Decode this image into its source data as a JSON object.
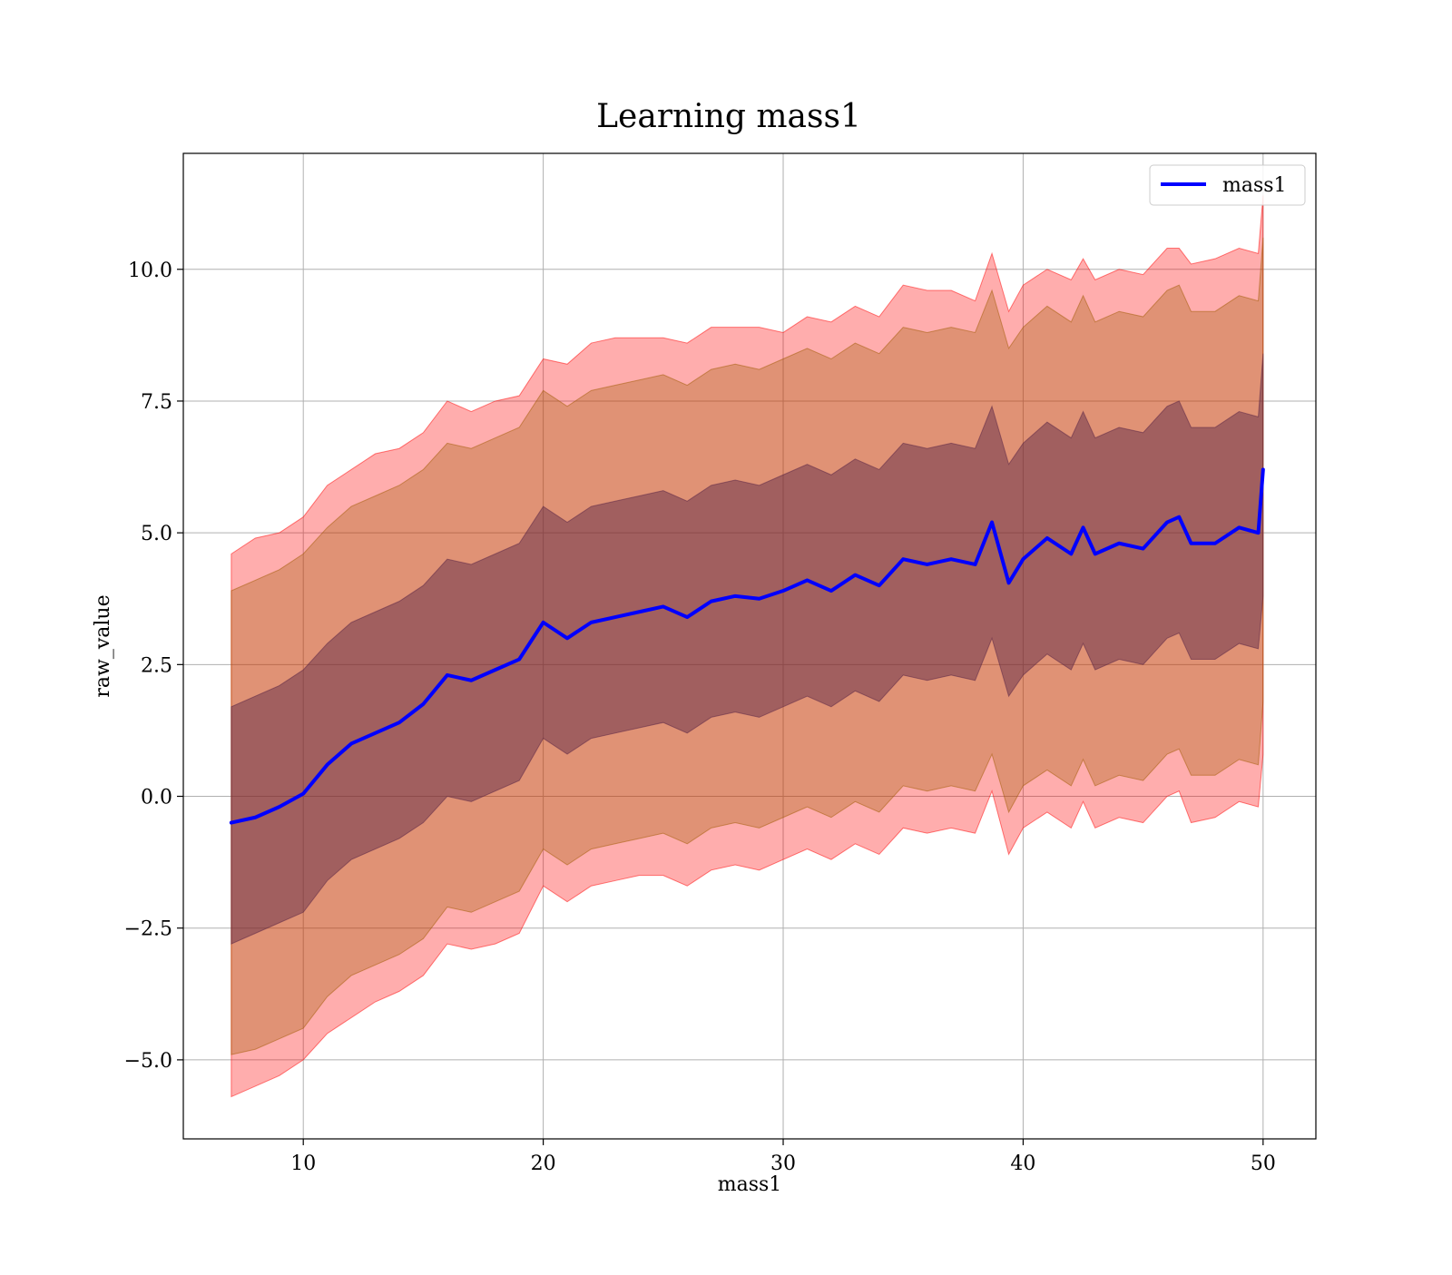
{
  "chart_data": {
    "type": "area",
    "title": "Learning mass1",
    "xlabel": "mass1",
    "ylabel": "raw_value",
    "xlim": [
      5.0,
      52.2
    ],
    "ylim": [
      -6.5,
      12.2
    ],
    "xticks": [
      10,
      20,
      30,
      40,
      50
    ],
    "xtick_labels": [
      "10",
      "20",
      "30",
      "40",
      "50"
    ],
    "yticks": [
      -5.0,
      -2.5,
      0.0,
      2.5,
      5.0,
      7.5,
      10.0
    ],
    "ytick_labels": [
      "−5.0",
      "−2.5",
      "0.0",
      "2.5",
      "5.0",
      "7.5",
      "10.0"
    ],
    "grid": true,
    "legend_position": "top-right",
    "colors": {
      "line": "#0000ff",
      "band_outer": "#ff0000",
      "band_middle": "#a05a00",
      "band_inner": "#552244"
    },
    "x": [
      7,
      8,
      9,
      10,
      11,
      12,
      13,
      14,
      15,
      16,
      17,
      18,
      19,
      20,
      21,
      22,
      23,
      24,
      25,
      26,
      27,
      28,
      29,
      30,
      31,
      32,
      33,
      34,
      35,
      36,
      37,
      38,
      38.7,
      39.4,
      40,
      41,
      42,
      42.5,
      43,
      44,
      45,
      46,
      46.5,
      47,
      48,
      49,
      49.8,
      50
    ],
    "series": [
      {
        "name": "mass1",
        "role": "mean",
        "values": [
          -0.5,
          -0.4,
          -0.2,
          0.05,
          0.6,
          1.0,
          1.2,
          1.4,
          1.75,
          2.3,
          2.2,
          2.4,
          2.6,
          3.3,
          3.0,
          3.3,
          3.4,
          3.5,
          3.6,
          3.4,
          3.7,
          3.8,
          3.75,
          3.9,
          4.1,
          3.9,
          4.2,
          4.0,
          4.5,
          4.4,
          4.5,
          4.4,
          5.2,
          4.05,
          4.5,
          4.9,
          4.6,
          5.1,
          4.6,
          4.8,
          4.7,
          5.2,
          5.3,
          4.8,
          4.8,
          5.1,
          5.0,
          6.2
        ]
      }
    ],
    "bands": [
      {
        "role": "outer",
        "upper": [
          4.6,
          4.9,
          5.0,
          5.3,
          5.9,
          6.2,
          6.5,
          6.6,
          6.9,
          7.5,
          7.3,
          7.5,
          7.6,
          8.3,
          8.2,
          8.6,
          8.7,
          8.7,
          8.7,
          8.6,
          8.9,
          8.9,
          8.9,
          8.8,
          9.1,
          9.0,
          9.3,
          9.1,
          9.7,
          9.6,
          9.6,
          9.4,
          10.3,
          9.2,
          9.7,
          10.0,
          9.8,
          10.2,
          9.8,
          10.0,
          9.9,
          10.4,
          10.4,
          10.1,
          10.2,
          10.4,
          10.3,
          11.4
        ],
        "lower": [
          -5.7,
          -5.5,
          -5.3,
          -5.0,
          -4.5,
          -4.2,
          -3.9,
          -3.7,
          -3.4,
          -2.8,
          -2.9,
          -2.8,
          -2.6,
          -1.7,
          -2.0,
          -1.7,
          -1.6,
          -1.5,
          -1.5,
          -1.7,
          -1.4,
          -1.3,
          -1.4,
          -1.2,
          -1.0,
          -1.2,
          -0.9,
          -1.1,
          -0.6,
          -0.7,
          -0.6,
          -0.7,
          0.1,
          -1.1,
          -0.6,
          -0.3,
          -0.6,
          -0.1,
          -0.6,
          -0.4,
          -0.5,
          0.0,
          0.1,
          -0.5,
          -0.4,
          -0.1,
          -0.2,
          0.8
        ]
      },
      {
        "role": "middle",
        "upper": [
          3.9,
          4.1,
          4.3,
          4.6,
          5.1,
          5.5,
          5.7,
          5.9,
          6.2,
          6.7,
          6.6,
          6.8,
          7.0,
          7.7,
          7.4,
          7.7,
          7.8,
          7.9,
          8.0,
          7.8,
          8.1,
          8.2,
          8.1,
          8.3,
          8.5,
          8.3,
          8.6,
          8.4,
          8.9,
          8.8,
          8.9,
          8.8,
          9.6,
          8.5,
          8.9,
          9.3,
          9.0,
          9.5,
          9.0,
          9.2,
          9.1,
          9.6,
          9.7,
          9.2,
          9.2,
          9.5,
          9.4,
          10.6
        ],
        "lower": [
          -4.9,
          -4.8,
          -4.6,
          -4.4,
          -3.8,
          -3.4,
          -3.2,
          -3.0,
          -2.7,
          -2.1,
          -2.2,
          -2.0,
          -1.8,
          -1.0,
          -1.3,
          -1.0,
          -0.9,
          -0.8,
          -0.7,
          -0.9,
          -0.6,
          -0.5,
          -0.6,
          -0.4,
          -0.2,
          -0.4,
          -0.1,
          -0.3,
          0.2,
          0.1,
          0.2,
          0.1,
          0.8,
          -0.3,
          0.2,
          0.5,
          0.2,
          0.7,
          0.2,
          0.4,
          0.3,
          0.8,
          0.9,
          0.4,
          0.4,
          0.7,
          0.6,
          1.8
        ]
      },
      {
        "role": "inner",
        "upper": [
          1.7,
          1.9,
          2.1,
          2.4,
          2.9,
          3.3,
          3.5,
          3.7,
          4.0,
          4.5,
          4.4,
          4.6,
          4.8,
          5.5,
          5.2,
          5.5,
          5.6,
          5.7,
          5.8,
          5.6,
          5.9,
          6.0,
          5.9,
          6.1,
          6.3,
          6.1,
          6.4,
          6.2,
          6.7,
          6.6,
          6.7,
          6.6,
          7.4,
          6.3,
          6.7,
          7.1,
          6.8,
          7.3,
          6.8,
          7.0,
          6.9,
          7.4,
          7.5,
          7.0,
          7.0,
          7.3,
          7.2,
          8.4
        ],
        "lower": [
          -2.8,
          -2.6,
          -2.4,
          -2.2,
          -1.6,
          -1.2,
          -1.0,
          -0.8,
          -0.5,
          0.0,
          -0.1,
          0.1,
          0.3,
          1.1,
          0.8,
          1.1,
          1.2,
          1.3,
          1.4,
          1.2,
          1.5,
          1.6,
          1.5,
          1.7,
          1.9,
          1.7,
          2.0,
          1.8,
          2.3,
          2.2,
          2.3,
          2.2,
          3.0,
          1.9,
          2.3,
          2.7,
          2.4,
          2.9,
          2.4,
          2.6,
          2.5,
          3.0,
          3.1,
          2.6,
          2.6,
          2.9,
          2.8,
          3.8
        ]
      }
    ]
  }
}
